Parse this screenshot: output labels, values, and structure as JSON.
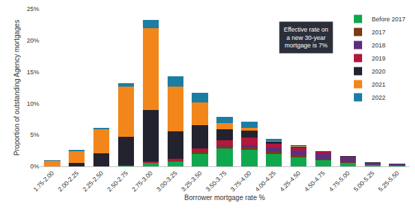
{
  "chart_data": {
    "type": "bar",
    "stacked": true,
    "grid": false,
    "legend": "top-right",
    "xlabel": "Borrower mortgage rate %",
    "ylabel": "Proportion of outstanding Agency mortgages",
    "annotation": [
      "Effective rate on",
      "a new 30-year",
      "mortgage is 7%"
    ],
    "categories": [
      "1.75-2.00",
      "2.00-2.25",
      "2.25-2.50",
      "2.50-2.75",
      "2.75-3.00",
      "3.00-3.25",
      "3.25-3.50",
      "3.50-3.75",
      "3.75-4.00",
      "4.00-4.25",
      "4.25-4.50",
      "4.50-4.75",
      "4.75-5.00",
      "5.00-5.25",
      "5.25-5.50"
    ],
    "ylim": [
      0,
      25
    ],
    "yticks": [
      {
        "value": 0,
        "label": "0%"
      },
      {
        "value": 5,
        "label": "5%"
      },
      {
        "value": 10,
        "label": "10%"
      },
      {
        "value": 15,
        "label": "15%"
      },
      {
        "value": 20,
        "label": "20%"
      },
      {
        "value": 25,
        "label": "25%"
      }
    ],
    "series": [
      {
        "name": "Before 2017",
        "color": "#10a84e",
        "values": [
          0,
          0,
          0,
          0.1,
          0.5,
          0.8,
          2.0,
          2.8,
          2.6,
          2.0,
          1.4,
          1.0,
          0.6,
          0.2,
          0.1
        ]
      },
      {
        "name": "2017",
        "color": "#7a3b12",
        "values": [
          0,
          0,
          0,
          0,
          0.1,
          0.1,
          0.3,
          0.4,
          0.5,
          0.4,
          0.4,
          0.2,
          0.1,
          0,
          0
        ]
      },
      {
        "name": "2018",
        "color": "#5e2d7e",
        "values": [
          0,
          0,
          0,
          0,
          0,
          0,
          0.1,
          0.1,
          0.3,
          0.6,
          0.7,
          0.9,
          0.7,
          0.4,
          0.3
        ]
      },
      {
        "name": "2019",
        "color": "#b3173c",
        "values": [
          0,
          0,
          0,
          0,
          0.2,
          0.3,
          0.4,
          0.8,
          1.2,
          0.6,
          0.4,
          0.2,
          0.1,
          0,
          0
        ]
      },
      {
        "name": "2020",
        "color": "#23232f",
        "values": [
          0.05,
          0.6,
          2.1,
          4.6,
          8.2,
          4.4,
          3.7,
          1.8,
          1.1,
          0.3,
          0.2,
          0.1,
          0.1,
          0.1,
          0
        ]
      },
      {
        "name": "2021",
        "color": "#f2861b",
        "values": [
          0.85,
          1.8,
          3.8,
          8.0,
          12.9,
          7.1,
          3.7,
          1.0,
          0.4,
          0.1,
          0.05,
          0,
          0,
          0,
          0
        ]
      },
      {
        "name": "2022",
        "color": "#1c7da3",
        "values": [
          0.1,
          0.2,
          0.2,
          0.5,
          1.4,
          1.6,
          1.5,
          1.0,
          1.0,
          0.4,
          0.25,
          0,
          0,
          0,
          0
        ]
      }
    ]
  }
}
